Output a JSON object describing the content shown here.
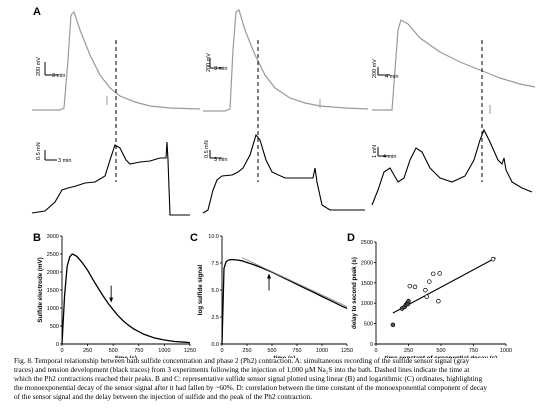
{
  "panel_A": {
    "letter": "A",
    "scalebars": [
      {
        "amp": "200 mV",
        "time": "3 min"
      },
      {
        "amp": "200 mV",
        "time": "3 min"
      },
      {
        "amp": "200 mV",
        "time": "4 min"
      }
    ],
    "tension_scalebars": [
      {
        "amp": "0.5 mN",
        "time": "3 min"
      },
      {
        "amp": "0.5 mN",
        "time": "3 min"
      },
      {
        "amp": "1 mN",
        "time": "4 min"
      }
    ],
    "trace_colors": {
      "sulfide": "#9a9a9a",
      "tension": "#000000"
    }
  },
  "chart_data": [
    {
      "panel": "B",
      "type": "line",
      "xlabel": "time (s)",
      "ylabel": "Sulfide electrode (mV)",
      "x_ticks": [
        "0",
        "250",
        "500",
        "750",
        "1000",
        "1250"
      ],
      "y_ticks": [
        "0",
        "500",
        "1000",
        "1500",
        "2000",
        "2500",
        "3000"
      ],
      "xlim": [
        0,
        1250
      ],
      "ylim": [
        0,
        3000
      ],
      "series": [
        {
          "x": [
            0,
            25,
            50,
            75,
            100,
            125,
            150,
            200,
            250,
            300,
            350,
            400,
            450,
            500,
            550,
            600,
            650,
            700,
            800,
            900,
            1000,
            1100,
            1200,
            1250
          ],
          "y": [
            0,
            1350,
            2150,
            2420,
            2500,
            2470,
            2420,
            2250,
            2050,
            1800,
            1570,
            1340,
            1130,
            950,
            780,
            640,
            520,
            420,
            270,
            170,
            110,
            70,
            50,
            40
          ]
        }
      ],
      "arrow_at": [
        480,
        1120
      ]
    },
    {
      "panel": "C",
      "type": "line",
      "xlabel": "time (s)",
      "ylabel": "log sulfide signal",
      "x_ticks": [
        "0",
        "250",
        "500",
        "750",
        "1000",
        "1250"
      ],
      "y_ticks": [
        "0.0",
        "2.5",
        "5.0",
        "7.5",
        "10.0"
      ],
      "xlim": [
        0,
        1250
      ],
      "ylim": [
        0,
        10
      ],
      "series": [
        {
          "x": [
            0,
            20,
            40,
            60,
            80,
            100,
            150,
            200,
            250,
            300,
            350,
            400,
            450,
            500,
            600,
            700,
            800,
            900,
            1000,
            1100,
            1200,
            1250
          ],
          "y": [
            0,
            7.0,
            7.6,
            7.75,
            7.8,
            7.82,
            7.78,
            7.7,
            7.55,
            7.4,
            7.22,
            7.05,
            6.85,
            6.65,
            6.2,
            5.75,
            5.3,
            4.85,
            4.4,
            3.95,
            3.5,
            3.3
          ]
        },
        {
          "x": [
            200,
            1250
          ],
          "y": [
            8.0,
            3.45
          ]
        }
      ],
      "arrow_at": [
        470,
        6.8
      ]
    },
    {
      "panel": "D",
      "type": "scatter",
      "xlabel": "time constant of exponential decay (s)",
      "ylabel": "delay to second peak (s)",
      "x_ticks": [
        "0",
        "250",
        "500",
        "750",
        "1000"
      ],
      "y_ticks": [
        "0",
        "500",
        "1000",
        "1500",
        "2000",
        "2500"
      ],
      "xlim": [
        0,
        1000
      ],
      "ylim": [
        0,
        2500
      ],
      "points": {
        "x": [
          130,
          200,
          220,
          230,
          240,
          245,
          250,
          260,
          300,
          380,
          390,
          410,
          440,
          480,
          490,
          900
        ],
        "y": [
          470,
          870,
          910,
          960,
          1000,
          980,
          1050,
          1420,
          1400,
          1320,
          1160,
          1530,
          1720,
          1050,
          1730,
          2080
        ]
      },
      "fit": {
        "x": [
          130,
          920
        ],
        "y": [
          760,
          2110
        ]
      }
    }
  ],
  "caption": {
    "lines": [
      "Fig. 8. Temporal relationship between bath sulfide concentration and phase 2 (Ph2) contraction. A: simultaneous recording of the sulfide sensor signal (gray",
      "traces) and tension development (black traces) from 3 experiments following the injection of 1,000 µM Na₂S into the bath. Dashed lines indicate the time at",
      "which the Ph2 contractions reached their peaks. B and C: representative sulfide sensor signal plotted using linear (B) and logarithmic (C) ordinates, highlighting",
      "the monoexponential decay of the sensor signal after it had fallen by ~60%. D: correlation between the time constant of the monoexponential component of decay",
      "of the sensor signal and the delay between the injection of sulfide and the peak of the Ph2 contraction."
    ]
  }
}
